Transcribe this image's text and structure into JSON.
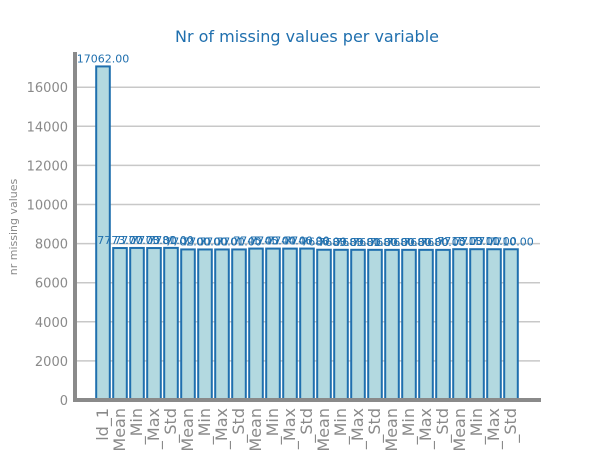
{
  "chart_data": {
    "type": "bar",
    "title": "Nr of missing values per variable",
    "xlabel": "",
    "ylabel": "nr missing values",
    "ylim": [
      0,
      17800
    ],
    "yticks": [
      0,
      2000,
      4000,
      6000,
      8000,
      10000,
      12000,
      14000,
      16000
    ],
    "grid": true,
    "categories": [
      "ld_1",
      "_Mean",
      "_Min",
      "_Max",
      "_Std",
      "_Mean",
      "_Min",
      "_Max",
      "_Std",
      "_Mean",
      "_Min",
      "_Max",
      "_Std",
      "_Mean",
      "_Min",
      "_Max",
      "_Std",
      "_Mean",
      "_Min",
      "_Max",
      "_Std",
      "_Mean",
      "_Min",
      "_Max",
      "_Std"
    ],
    "values": [
      17062,
      7773,
      7777,
      7773,
      7781,
      7702,
      7700,
      7700,
      7701,
      7745,
      7745,
      7744,
      7746,
      7686,
      7683,
      7683,
      7681,
      7680,
      7680,
      7680,
      7680,
      7713,
      7713,
      7711,
      7710
    ],
    "data_labels": [
      "17062.00",
      "7773.00",
      "7777.00",
      "7773.00",
      "7781.00",
      "7702.00",
      "7700.00",
      "7700.00",
      "7701.00",
      "7745.00",
      "7745.00",
      "7744.00",
      "7746.00",
      "7686.00",
      "7683.00",
      "7683.00",
      "7681.00",
      "7680.00",
      "7680.00",
      "7680.00",
      "7680.00",
      "7713.00",
      "7713.00",
      "7711.00",
      "7710.00"
    ],
    "colors": {
      "bar_fill": "#b3d9e0",
      "bar_edge": "#1f6fae",
      "title": "#1f6fae",
      "axis": "#8a8a8a"
    }
  }
}
